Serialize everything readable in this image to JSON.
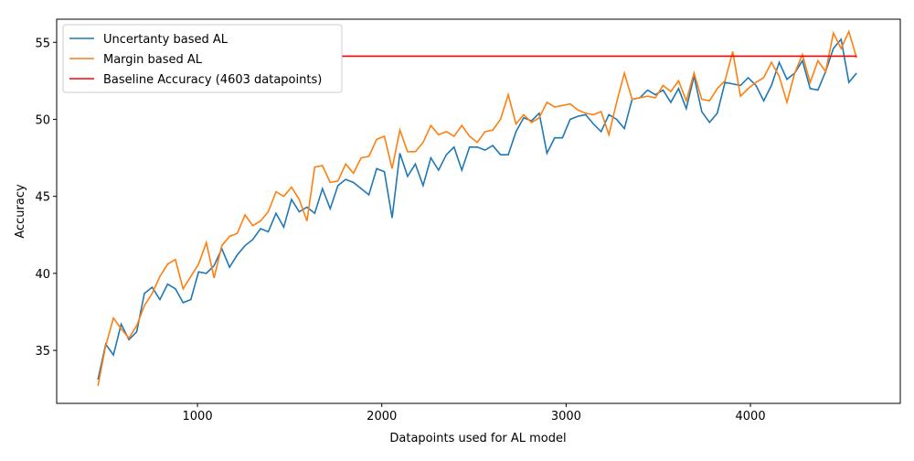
{
  "chart_data": {
    "type": "line",
    "xlabel": "Datapoints used for AL model",
    "ylabel": "Accuracy",
    "x": [
      460,
      502,
      544,
      586,
      628,
      670,
      712,
      754,
      796,
      838,
      880,
      922,
      964,
      1006,
      1048,
      1090,
      1132,
      1174,
      1216,
      1258,
      1300,
      1342,
      1384,
      1426,
      1468,
      1510,
      1552,
      1594,
      1636,
      1678,
      1720,
      1762,
      1804,
      1846,
      1888,
      1930,
      1972,
      2014,
      2056,
      2098,
      2140,
      2182,
      2224,
      2266,
      2308,
      2350,
      2392,
      2434,
      2476,
      2518,
      2560,
      2602,
      2644,
      2686,
      2728,
      2770,
      2812,
      2854,
      2896,
      2938,
      2980,
      3022,
      3064,
      3106,
      3148,
      3190,
      3232,
      3274,
      3316,
      3358,
      3400,
      3442,
      3484,
      3526,
      3568,
      3610,
      3652,
      3694,
      3736,
      3778,
      3820,
      3862,
      3904,
      3946,
      3988,
      4030,
      4072,
      4114,
      4156,
      4198,
      4240,
      4282,
      4324,
      4366,
      4408,
      4450,
      4492,
      4534,
      4576
    ],
    "series": [
      {
        "name": "Uncertanty based AL",
        "color": "#1f77b4",
        "values": [
          33.1,
          35.4,
          34.7,
          36.7,
          35.7,
          36.2,
          38.7,
          39.1,
          38.3,
          39.3,
          39.0,
          38.1,
          38.3,
          40.1,
          40.0,
          40.5,
          41.6,
          40.4,
          41.2,
          41.8,
          42.2,
          42.9,
          42.7,
          43.9,
          43.0,
          44.8,
          44.0,
          44.3,
          43.9,
          45.5,
          44.2,
          45.7,
          46.1,
          45.9,
          45.5,
          45.1,
          46.8,
          46.6,
          43.6,
          47.8,
          46.3,
          47.1,
          45.7,
          47.5,
          46.7,
          47.7,
          48.2,
          46.7,
          48.2,
          48.2,
          48.0,
          48.3,
          47.7,
          47.7,
          49.2,
          50.1,
          49.9,
          50.4,
          47.8,
          48.8,
          48.8,
          50.0,
          50.2,
          50.3,
          49.7,
          49.2,
          50.3,
          50.0,
          49.4,
          51.3,
          51.4,
          51.9,
          51.6,
          51.9,
          51.1,
          52.0,
          50.7,
          52.8,
          50.5,
          49.8,
          50.4,
          52.4,
          52.3,
          52.2,
          52.7,
          52.2,
          51.2,
          52.2,
          53.7,
          52.6,
          53.0,
          53.8,
          52.0,
          51.9,
          53.1,
          54.6,
          55.2,
          52.4,
          53.0
        ]
      },
      {
        "name": "Margin based AL",
        "color": "#ff7f0e",
        "values": [
          32.7,
          35.3,
          37.1,
          36.4,
          35.8,
          36.6,
          37.9,
          38.7,
          39.8,
          40.6,
          40.9,
          39.0,
          39.8,
          40.6,
          42.0,
          39.7,
          41.8,
          42.4,
          42.6,
          43.8,
          43.1,
          43.4,
          44.0,
          45.3,
          45.0,
          45.6,
          44.8,
          43.4,
          46.9,
          47.0,
          45.9,
          46.0,
          47.1,
          46.5,
          47.5,
          47.6,
          48.7,
          48.9,
          46.8,
          49.3,
          47.9,
          47.9,
          48.5,
          49.6,
          49.0,
          49.2,
          48.9,
          49.6,
          48.9,
          48.5,
          49.2,
          49.3,
          50.0,
          51.6,
          49.7,
          50.3,
          49.8,
          50.1,
          51.1,
          50.8,
          50.9,
          51.0,
          50.6,
          50.4,
          50.3,
          50.5,
          49.0,
          51.1,
          53.0,
          51.3,
          51.4,
          51.5,
          51.4,
          52.2,
          51.8,
          52.5,
          51.2,
          53.0,
          51.3,
          51.2,
          52.0,
          52.5,
          54.4,
          51.5,
          52.0,
          52.4,
          52.7,
          53.7,
          52.8,
          51.1,
          53.0,
          54.2,
          52.4,
          53.8,
          53.1,
          55.6,
          54.6,
          55.7,
          54.0
        ]
      }
    ],
    "baseline": {
      "name": "Baseline Accuracy (4603 datapoints)",
      "color": "#ff0000",
      "value": 54.1
    },
    "xlim": [
      236,
      4813
    ],
    "ylim": [
      31.56,
      56.5
    ],
    "xticks": [
      1000,
      2000,
      3000,
      4000
    ],
    "yticks": [
      35,
      40,
      45,
      50,
      55
    ],
    "legend": "upper left"
  }
}
